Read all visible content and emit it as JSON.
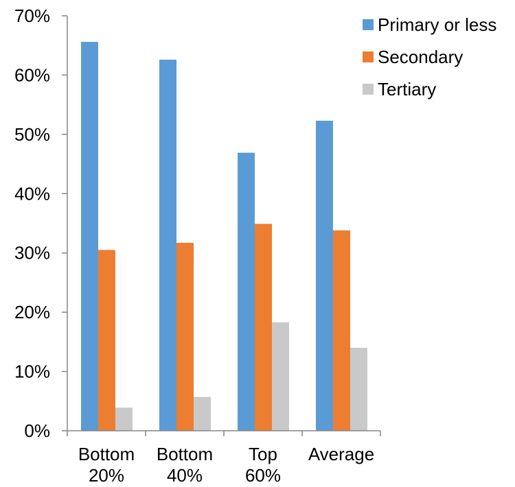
{
  "chart_data": {
    "type": "bar",
    "categories": [
      [
        "Bottom",
        "20%"
      ],
      [
        "Bottom",
        "40%"
      ],
      [
        "Top",
        "60%"
      ],
      [
        "Average"
      ]
    ],
    "series": [
      {
        "name": "Primary or less",
        "values": [
          65.6,
          62.6,
          46.9,
          52.3
        ],
        "color": "#5b9bd5"
      },
      {
        "name": "Secondary",
        "values": [
          30.5,
          31.7,
          34.9,
          33.8
        ],
        "color": "#ed7d31"
      },
      {
        "name": "Tertiary",
        "values": [
          3.9,
          5.7,
          18.3,
          14.0
        ],
        "color": "#c9c9c9"
      }
    ],
    "y_tick_labels": [
      "0%",
      "10%",
      "20%",
      "30%",
      "40%",
      "50%",
      "60%",
      "70%"
    ],
    "ylim": [
      0,
      70
    ],
    "legend_position": "top-right",
    "grid": false,
    "title": "",
    "xlabel": "",
    "ylabel": ""
  }
}
